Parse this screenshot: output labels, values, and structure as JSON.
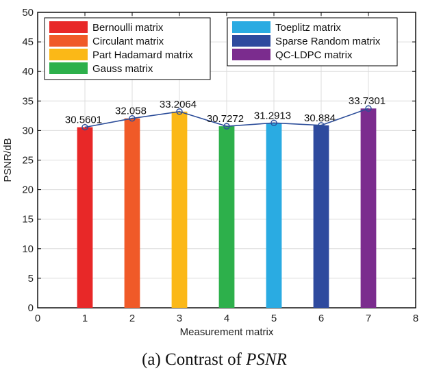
{
  "chart_data": {
    "type": "bar",
    "categories": [
      "1",
      "2",
      "3",
      "4",
      "5",
      "6",
      "7"
    ],
    "series": [
      {
        "name": "Bernoulli matrix",
        "x": 1,
        "value": 30.5601,
        "color": "#e82828"
      },
      {
        "name": "Circulant matrix",
        "x": 2,
        "value": 32.058,
        "color": "#f05a28"
      },
      {
        "name": "Part Hadamard matrix",
        "x": 3,
        "value": 33.2064,
        "color": "#fbb817"
      },
      {
        "name": "Gauss matrix",
        "x": 4,
        "value": 30.7272,
        "color": "#2db04b"
      },
      {
        "name": "Toeplitz matrix",
        "x": 5,
        "value": 31.2913,
        "color": "#2aabe2"
      },
      {
        "name": "Sparse Random matrix",
        "x": 6,
        "value": 30.884,
        "color": "#2e4a9e"
      },
      {
        "name": "QC-LDPC matrix",
        "x": 7,
        "value": 33.7301,
        "color": "#7b2c8e"
      }
    ],
    "data_labels": [
      "30.5601",
      "32.058",
      "33.2064",
      "30.7272",
      "31.2913",
      "30.884",
      "33.7301"
    ],
    "line_color": "#2d4e9a",
    "xlabel": "Measurement matrix",
    "ylabel": "PSNR/dB",
    "xlim": [
      0,
      8
    ],
    "ylim": [
      0,
      50
    ],
    "xticks": [
      "0",
      "1",
      "2",
      "3",
      "4",
      "5",
      "6",
      "7",
      "8"
    ],
    "yticks": [
      "0",
      "5",
      "10",
      "15",
      "20",
      "25",
      "30",
      "35",
      "40",
      "45",
      "50"
    ],
    "grid": true,
    "legend_position": "top"
  },
  "caption": {
    "prefix": "(a) Contrast of ",
    "emphasis": "PSNR"
  }
}
